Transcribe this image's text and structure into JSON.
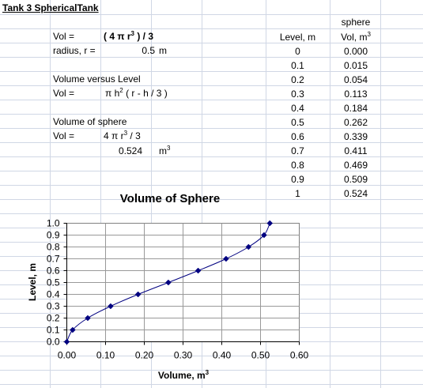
{
  "sheet": {
    "title": "Tank 3 SphericalTank",
    "vol_label": "Vol  =",
    "vol_formula_a": "( 4 π r",
    "vol_formula_sup": "3",
    "vol_formula_b": " ) / 3",
    "radius_label": "radius, r =",
    "radius_value": "0.5",
    "radius_unit": "m",
    "vvl_heading": "Volume versus Level",
    "vol2_label": "Vol =",
    "vol2_formula_a": "π h",
    "vol2_formula_sup": "2",
    "vol2_formula_b": "  ( r - h / 3 )",
    "sphere_heading": "Volume of sphere",
    "vol3_label": "Vol =",
    "vol3_formula_a": "4 π r",
    "vol3_formula_sup": "3",
    "vol3_formula_b": " / 3",
    "sphere_value": "0.524",
    "sphere_unit": "m",
    "sphere_unit_sup": "3"
  },
  "table": {
    "header_sphere": "sphere",
    "header_level": "Level, m",
    "header_vol": "Vol, m",
    "header_vol_sup": "3",
    "levels": [
      "0",
      "0.1",
      "0.2",
      "0.3",
      "0.4",
      "0.5",
      "0.6",
      "0.7",
      "0.8",
      "0.9",
      "1"
    ],
    "volumes": [
      "0.000",
      "0.015",
      "0.054",
      "0.113",
      "0.184",
      "0.262",
      "0.339",
      "0.411",
      "0.469",
      "0.509",
      "0.524"
    ]
  },
  "chart_data": {
    "type": "scatter",
    "title": "Volume of Sphere",
    "xlabel": "Volume, m",
    "xlabel_sup": "3",
    "ylabel": "Level, m",
    "xlim": [
      0,
      0.6
    ],
    "ylim": [
      0,
      1.0
    ],
    "xticks": [
      "0.00",
      "0.10",
      "0.20",
      "0.30",
      "0.40",
      "0.50",
      "0.60"
    ],
    "yticks": [
      "0.0",
      "0.1",
      "0.2",
      "0.3",
      "0.4",
      "0.5",
      "0.6",
      "0.7",
      "0.8",
      "0.9",
      "1.0"
    ],
    "grid": true,
    "series": [
      {
        "x": [
          0.0,
          0.015,
          0.054,
          0.113,
          0.184,
          0.262,
          0.339,
          0.411,
          0.469,
          0.509,
          0.524
        ],
        "y": [
          0,
          0.1,
          0.2,
          0.3,
          0.4,
          0.5,
          0.6,
          0.7,
          0.8,
          0.9,
          1.0
        ]
      }
    ],
    "colors": {
      "series": "#000080",
      "plot_bg": "#ffffff",
      "gridline": "#999999"
    }
  }
}
